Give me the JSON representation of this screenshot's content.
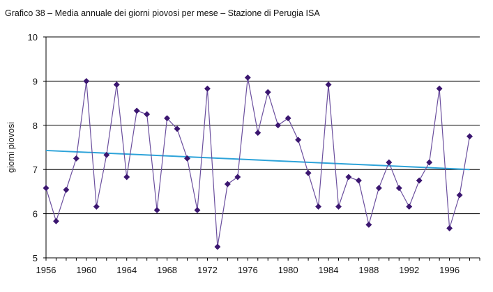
{
  "chart_data": {
    "type": "line",
    "title": "Grafico 38 – Media annuale dei giorni piovosi per mese – Stazione di Perugia ISA",
    "xlabel": "",
    "ylabel": "giorni piovosi",
    "xlim": [
      1956,
      1999
    ],
    "ylim": [
      5,
      10
    ],
    "x_ticks": [
      1956,
      1960,
      1964,
      1968,
      1972,
      1976,
      1980,
      1984,
      1988,
      1992,
      1996
    ],
    "y_ticks": [
      5,
      6,
      7,
      8,
      9,
      10
    ],
    "grid": "horizontal",
    "legend": "none",
    "colors": {
      "series": "#6b4f9e",
      "marker": "#3b1670",
      "trend": "#2da3d9",
      "grid": "#000000"
    },
    "series": [
      {
        "marker": "diamond",
        "x": [
          1956,
          1957,
          1958,
          1959,
          1960,
          1961,
          1962,
          1963,
          1964,
          1965,
          1966,
          1967,
          1968,
          1969,
          1970,
          1971,
          1972,
          1973,
          1974,
          1975,
          1976,
          1977,
          1978,
          1979,
          1980,
          1981,
          1982,
          1983,
          1984,
          1985,
          1986,
          1987,
          1988,
          1989,
          1990,
          1991,
          1992,
          1993,
          1994,
          1995,
          1996,
          1997,
          1998
        ],
        "values": [
          6.58,
          5.83,
          6.54,
          7.25,
          9.0,
          6.16,
          7.33,
          8.92,
          6.83,
          8.33,
          8.25,
          6.08,
          8.16,
          7.92,
          7.25,
          6.08,
          8.83,
          5.25,
          6.67,
          6.83,
          9.08,
          7.83,
          8.75,
          8.0,
          8.16,
          7.67,
          6.92,
          6.16,
          8.92,
          6.16,
          6.83,
          6.75,
          5.75,
          6.58,
          7.16,
          6.58,
          6.16,
          6.75,
          7.16,
          8.83,
          5.67,
          6.42,
          7.75
        ]
      },
      {
        "type": "trendline",
        "x": [
          1956,
          1998
        ],
        "values": [
          7.43,
          7.0
        ]
      }
    ]
  }
}
